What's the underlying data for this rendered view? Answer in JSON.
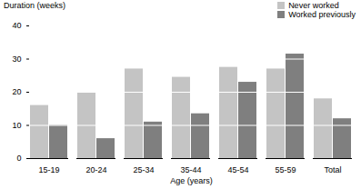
{
  "chart_data": {
    "type": "bar",
    "y_label": "Duration (weeks)",
    "x_label": "Age (years)",
    "categories": [
      "15-19",
      "20-24",
      "25-34",
      "35-44",
      "45-54",
      "55-59",
      "Total"
    ],
    "series": [
      {
        "name": "Never worked",
        "color": "#c4c4c4",
        "values": [
          16,
          20,
          27,
          24.5,
          27.5,
          27,
          18
        ]
      },
      {
        "name": "Worked previously",
        "color": "#7f7f7f",
        "values": [
          10,
          6,
          11,
          13.5,
          23,
          31.5,
          12
        ]
      }
    ],
    "ylim": [
      0,
      40
    ],
    "yticks": [
      0,
      10,
      20,
      30,
      40
    ],
    "grid": true,
    "legend": "top-right"
  }
}
